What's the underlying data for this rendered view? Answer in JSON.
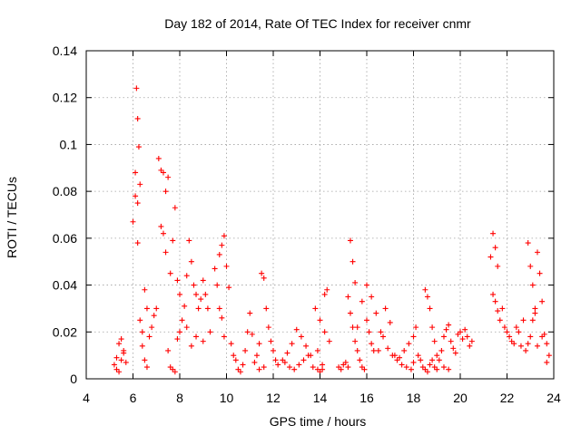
{
  "chart_data": {
    "type": "scatter",
    "title": "Day 182 of 2014, Rate Of TEC Index for receiver cnmr",
    "xlabel": "GPS time / hours",
    "ylabel": "ROTI / TECUs",
    "xlim": [
      4,
      24
    ],
    "ylim": [
      0,
      0.14
    ],
    "xticks": [
      4,
      6,
      8,
      10,
      12,
      14,
      16,
      18,
      20,
      22,
      24
    ],
    "xtick_labels": [
      "4",
      "6",
      "8",
      "10",
      "12",
      "14",
      "16",
      "18",
      "20",
      "22",
      "24"
    ],
    "yticks": [
      0,
      0.02,
      0.04,
      0.06,
      0.08,
      0.1,
      0.12,
      0.14
    ],
    "ytick_labels": [
      "0",
      "0.02",
      "0.04",
      "0.06",
      "0.08",
      "0.1",
      "0.12",
      "0.14"
    ],
    "grid": true,
    "marker": "+",
    "color": "#ff0000",
    "series": [
      {
        "name": "ROTI",
        "x": [
          5.2,
          5.3,
          5.4,
          5.5,
          5.6,
          5.7,
          5.3,
          5.4,
          5.5,
          5.6,
          6.0,
          6.1,
          6.15,
          6.2,
          6.25,
          6.3,
          6.1,
          6.2,
          6.2,
          6.3,
          6.4,
          6.5,
          6.6,
          6.7,
          6.8,
          6.9,
          7.0,
          6.4,
          6.5,
          6.6,
          7.1,
          7.2,
          7.3,
          7.4,
          7.5,
          7.2,
          7.3,
          7.4,
          7.6,
          7.7,
          7.8,
          7.9,
          8.0,
          7.5,
          7.6,
          7.7,
          7.8,
          7.9,
          8.0,
          8.1,
          8.2,
          8.3,
          8.4,
          8.5,
          8.6,
          8.7,
          8.8,
          8.9,
          9.0,
          9.1,
          9.2,
          8.3,
          8.5,
          8.7,
          9.0,
          9.3,
          9.5,
          9.6,
          9.7,
          9.8,
          9.9,
          10.0,
          10.1,
          9.7,
          9.8,
          9.9,
          10.2,
          10.3,
          10.4,
          10.5,
          10.6,
          10.7,
          10.8,
          10.9,
          11.0,
          11.1,
          11.2,
          11.3,
          11.4,
          11.5,
          11.6,
          11.7,
          11.8,
          11.9,
          12.0,
          12.1,
          11.4,
          11.6,
          12.2,
          12.4,
          12.6,
          12.8,
          13.0,
          13.2,
          13.4,
          13.6,
          12.5,
          12.7,
          12.9,
          13.1,
          13.3,
          13.5,
          13.7,
          13.9,
          14.0,
          14.1,
          14.2,
          14.3,
          13.8,
          14.0,
          14.2,
          14.4,
          13.9,
          14.1,
          14.8,
          14.9,
          15.0,
          15.1,
          15.2,
          15.3,
          15.4,
          15.5,
          15.2,
          15.3,
          15.4,
          15.5,
          15.6,
          15.7,
          15.8,
          15.9,
          16.0,
          16.1,
          16.2,
          16.3,
          15.6,
          15.8,
          16.0,
          16.2,
          16.4,
          16.6,
          16.8,
          17.0,
          17.2,
          16.5,
          16.7,
          16.9,
          17.1,
          17.3,
          17.5,
          17.7,
          17.9,
          18.0,
          17.4,
          17.6,
          17.8,
          18.0,
          18.1,
          18.2,
          18.3,
          18.4,
          18.5,
          18.6,
          18.7,
          18.8,
          18.9,
          19.0,
          18.5,
          18.6,
          18.7,
          18.8,
          18.9,
          19.0,
          19.1,
          19.2,
          19.3,
          19.4,
          19.5,
          19.6,
          19.7,
          19.8,
          19.9,
          20.0,
          20.1,
          20.2,
          20.3,
          20.4,
          20.5,
          19.3,
          19.5,
          21.3,
          21.4,
          21.5,
          21.6,
          21.4,
          21.5,
          21.6,
          21.7,
          21.8,
          21.9,
          22.0,
          22.1,
          22.2,
          22.3,
          22.4,
          22.5,
          22.6,
          22.7,
          22.8,
          22.9,
          23.0,
          23.1,
          23.2,
          22.9,
          23.0,
          23.1,
          23.2,
          23.3,
          23.4,
          23.5,
          23.6,
          23.7,
          23.8,
          23.3,
          23.5,
          23.7
        ],
        "y": [
          0.006,
          0.009,
          0.015,
          0.017,
          0.011,
          0.007,
          0.004,
          0.003,
          0.008,
          0.012,
          0.067,
          0.088,
          0.124,
          0.111,
          0.099,
          0.083,
          0.078,
          0.075,
          0.058,
          0.025,
          0.02,
          0.038,
          0.03,
          0.018,
          0.022,
          0.027,
          0.03,
          0.014,
          0.008,
          0.005,
          0.094,
          0.089,
          0.088,
          0.08,
          0.086,
          0.065,
          0.062,
          0.054,
          0.045,
          0.059,
          0.073,
          0.042,
          0.036,
          0.012,
          0.005,
          0.004,
          0.003,
          0.017,
          0.02,
          0.025,
          0.031,
          0.044,
          0.059,
          0.05,
          0.04,
          0.036,
          0.03,
          0.034,
          0.042,
          0.036,
          0.03,
          0.022,
          0.014,
          0.018,
          0.016,
          0.02,
          0.047,
          0.04,
          0.053,
          0.057,
          0.061,
          0.048,
          0.039,
          0.03,
          0.026,
          0.018,
          0.015,
          0.01,
          0.008,
          0.004,
          0.003,
          0.006,
          0.012,
          0.02,
          0.028,
          0.019,
          0.007,
          0.01,
          0.015,
          0.045,
          0.043,
          0.03,
          0.022,
          0.016,
          0.012,
          0.008,
          0.004,
          0.005,
          0.006,
          0.008,
          0.011,
          0.015,
          0.021,
          0.018,
          0.014,
          0.01,
          0.007,
          0.005,
          0.004,
          0.006,
          0.008,
          0.01,
          0.005,
          0.004,
          0.003,
          0.004,
          0.036,
          0.038,
          0.03,
          0.025,
          0.02,
          0.016,
          0.012,
          0.006,
          0.005,
          0.004,
          0.006,
          0.007,
          0.005,
          0.059,
          0.05,
          0.041,
          0.035,
          0.028,
          0.022,
          0.016,
          0.012,
          0.008,
          0.005,
          0.004,
          0.025,
          0.02,
          0.015,
          0.012,
          0.022,
          0.033,
          0.04,
          0.035,
          0.028,
          0.02,
          0.03,
          0.024,
          0.01,
          0.012,
          0.018,
          0.013,
          0.01,
          0.008,
          0.006,
          0.005,
          0.004,
          0.007,
          0.009,
          0.012,
          0.015,
          0.018,
          0.022,
          0.01,
          0.008,
          0.005,
          0.004,
          0.003,
          0.006,
          0.008,
          0.005,
          0.004,
          0.038,
          0.035,
          0.03,
          0.022,
          0.016,
          0.01,
          0.008,
          0.012,
          0.018,
          0.021,
          0.023,
          0.016,
          0.013,
          0.011,
          0.019,
          0.02,
          0.017,
          0.021,
          0.018,
          0.014,
          0.016,
          0.005,
          0.004,
          0.052,
          0.062,
          0.056,
          0.048,
          0.036,
          0.033,
          0.029,
          0.025,
          0.03,
          0.022,
          0.02,
          0.018,
          0.016,
          0.015,
          0.022,
          0.02,
          0.014,
          0.025,
          0.012,
          0.058,
          0.048,
          0.04,
          0.03,
          0.015,
          0.018,
          0.025,
          0.028,
          0.054,
          0.045,
          0.033,
          0.019,
          0.015,
          0.01,
          0.014,
          0.018,
          0.007
        ]
      }
    ]
  }
}
